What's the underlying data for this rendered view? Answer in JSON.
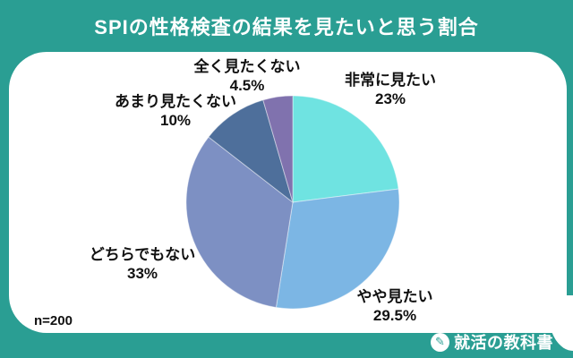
{
  "title": "SPIの性格検査の結果を見たいと思う割合",
  "sample_size_label": "n=200",
  "brand": {
    "name": "就活の教科書",
    "icon": "pencil-icon",
    "icon_glyph": "✎"
  },
  "colors": {
    "background_teal": "#2A9E93",
    "card_white": "#FFFFFF",
    "label_text": "#111111",
    "title_text": "#FFFFFF"
  },
  "chart_data": {
    "type": "pie",
    "title": "SPIの性格検査の結果を見たいと思う割合",
    "sample_size": 200,
    "start_angle_deg": -90,
    "direction": "clockwise",
    "legend_position": "labels-around-pie",
    "segments": [
      {
        "label": "非常に見たい",
        "value": 23,
        "display": "23%",
        "color": "#6FE3E1"
      },
      {
        "label": "やや見たい",
        "value": 29.5,
        "display": "29.5%",
        "color": "#7CB6E4"
      },
      {
        "label": "どちらでもない",
        "value": 33,
        "display": "33%",
        "color": "#7D90C3"
      },
      {
        "label": "あまり見たくない",
        "value": 10,
        "display": "10%",
        "color": "#4E6F9B"
      },
      {
        "label": "全く見たくない",
        "value": 4.5,
        "display": "4.5%",
        "color": "#8072AE"
      }
    ]
  }
}
